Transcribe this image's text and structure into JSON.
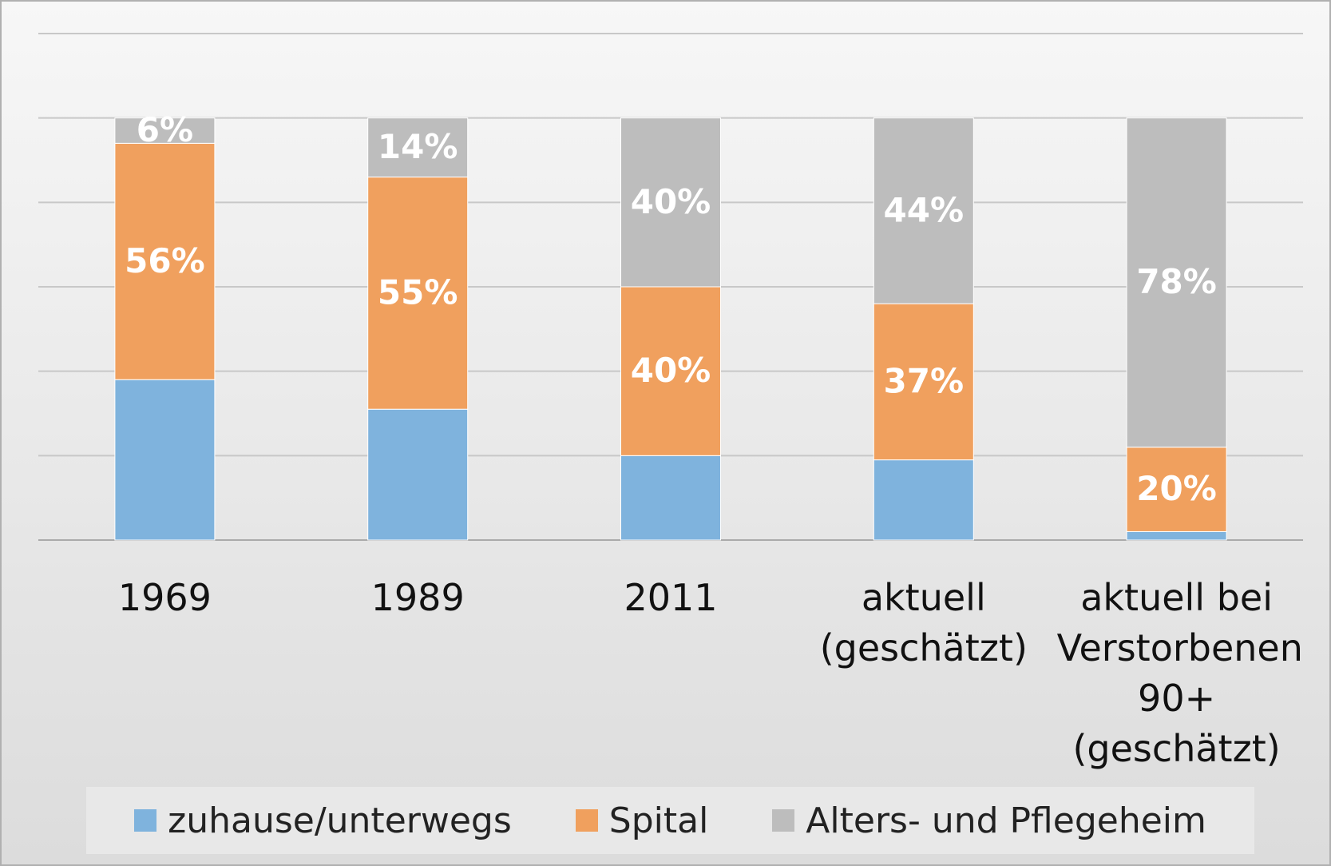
{
  "chart_data": {
    "type": "stacked_bar",
    "categories": [
      "1969",
      "1989",
      "2011",
      "aktuell (geschätzt)",
      "aktuell bei Verstorbenen 90+ (geschätzt)"
    ],
    "series": [
      {
        "name": "zuhause/unterwegs",
        "color": "#7fb3dd",
        "values": [
          38,
          31,
          20,
          19,
          2
        ]
      },
      {
        "name": "Spital",
        "color": "#f0a05e",
        "values": [
          56,
          55,
          40,
          37,
          20
        ],
        "value_labels": [
          "56%",
          "55%",
          "40%",
          "37%",
          "20%"
        ]
      },
      {
        "name": "Alters- und Pflegeheim",
        "color": "#bdbdbd",
        "values": [
          6,
          14,
          40,
          44,
          78
        ],
        "value_labels": [
          "6%",
          "14%",
          "40%",
          "44%",
          "78%"
        ]
      }
    ],
    "ylim": [
      0,
      120
    ],
    "yticks": [
      0,
      20,
      40,
      60,
      80,
      100,
      120
    ],
    "grid": true,
    "legend": "bottom"
  }
}
